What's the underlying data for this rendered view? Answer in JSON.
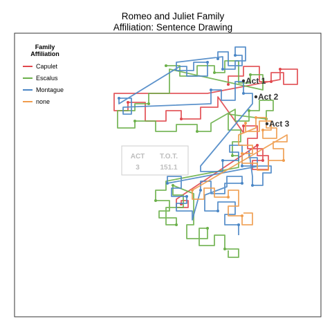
{
  "chart_data": {
    "type": "line",
    "title_lines": [
      "Romeo and Juliet Family",
      "Affiliation: Sentence Drawing"
    ],
    "xlabel": "",
    "ylabel": "",
    "grid": false,
    "legend_placement": "top-left",
    "legend": {
      "title_lines": [
        "Family",
        "Affiliation"
      ],
      "entries": [
        {
          "name": "Capulet",
          "color": "#E0474C"
        },
        {
          "name": "Escalus",
          "color": "#6BB04A"
        },
        {
          "name": "Montague",
          "color": "#4A86C5"
        },
        {
          "name": "none",
          "color": "#F09C4C"
        }
      ]
    },
    "acts": [
      {
        "label": "Act 1",
        "x": 352,
        "y": 117
      },
      {
        "label": "Act 2",
        "x": 370,
        "y": 140
      },
      {
        "label": "Act 3",
        "x": 386,
        "y": 179
      }
    ],
    "info_box": {
      "headers": [
        "ACT",
        "T.O.T."
      ],
      "values": [
        "3",
        "151.1"
      ]
    },
    "series": [
      {
        "name": "Capulet",
        "color": "#E0474C",
        "points": [
          [
            330,
            122
          ],
          [
            330,
            110
          ],
          [
            352,
            110
          ],
          [
            352,
            96
          ],
          [
            375,
            96
          ],
          [
            375,
            118
          ],
          [
            392,
            118
          ],
          [
            392,
            105
          ],
          [
            410,
            105
          ],
          [
            410,
            122
          ],
          [
            430,
            122
          ],
          [
            430,
            100
          ],
          [
            405,
            100
          ],
          [
            405,
            115
          ],
          [
            300,
            135
          ],
          [
            165,
            135
          ],
          [
            165,
            160
          ],
          [
            185,
            160
          ],
          [
            185,
            148
          ],
          [
            210,
            148
          ],
          [
            210,
            175
          ],
          [
            240,
            175
          ],
          [
            240,
            160
          ],
          [
            262,
            160
          ],
          [
            262,
            172
          ],
          [
            290,
            172
          ],
          [
            290,
            155
          ],
          [
            315,
            155
          ],
          [
            315,
            140
          ],
          [
            352,
            192
          ],
          [
            352,
            182
          ],
          [
            372,
            182
          ],
          [
            372,
            200
          ],
          [
            358,
            200
          ],
          [
            358,
            215
          ],
          [
            380,
            215
          ],
          [
            380,
            232
          ],
          [
            365,
            232
          ],
          [
            365,
            245
          ],
          [
            388,
            245
          ],
          [
            388,
            225
          ],
          [
            372,
            225
          ],
          [
            372,
            210
          ],
          [
            255,
            288
          ],
          [
            255,
            300
          ],
          [
            272,
            300
          ],
          [
            272,
            290
          ],
          [
            262,
            290
          ],
          [
            262,
            295
          ]
        ]
      },
      {
        "name": "Escalus",
        "color": "#6BB04A",
        "points": [
          [
            240,
            95
          ],
          [
            260,
            95
          ],
          [
            260,
            110
          ],
          [
            285,
            110
          ],
          [
            285,
            95
          ],
          [
            310,
            95
          ],
          [
            310,
            105
          ],
          [
            325,
            105
          ],
          [
            325,
            88
          ],
          [
            345,
            88
          ],
          [
            345,
            120
          ],
          [
            362,
            120
          ],
          [
            362,
            108
          ],
          [
            380,
            108
          ],
          [
            380,
            130
          ],
          [
            245,
            100
          ],
          [
            245,
            135
          ],
          [
            215,
            135
          ],
          [
            215,
            150
          ],
          [
            195,
            150
          ],
          [
            195,
            160
          ],
          [
            170,
            160
          ],
          [
            170,
            185
          ],
          [
            195,
            185
          ],
          [
            195,
            175
          ],
          [
            225,
            175
          ],
          [
            225,
            190
          ],
          [
            255,
            190
          ],
          [
            255,
            180
          ],
          [
            285,
            180
          ],
          [
            285,
            190
          ],
          [
            305,
            190
          ],
          [
            305,
            178
          ],
          [
            340,
            158
          ],
          [
            340,
            175
          ],
          [
            360,
            175
          ],
          [
            360,
            160
          ],
          [
            375,
            160
          ],
          [
            375,
            145
          ],
          [
            395,
            145
          ],
          [
            395,
            160
          ],
          [
            385,
            160
          ],
          [
            385,
            172
          ],
          [
            330,
            165
          ],
          [
            330,
            188
          ],
          [
            348,
            188
          ],
          [
            348,
            205
          ],
          [
            336,
            205
          ],
          [
            336,
            225
          ],
          [
            345,
            225
          ],
          [
            345,
            242
          ],
          [
            240,
            262
          ],
          [
            240,
            275
          ],
          [
            225,
            275
          ],
          [
            225,
            290
          ],
          [
            245,
            290
          ],
          [
            245,
            305
          ],
          [
            230,
            305
          ],
          [
            230,
            315
          ],
          [
            255,
            315
          ],
          [
            255,
            325
          ],
          [
            240,
            325
          ],
          [
            240,
            300
          ],
          [
            265,
            300
          ],
          [
            265,
            282
          ],
          [
            250,
            282
          ],
          [
            250,
            268
          ],
          [
            280,
            280
          ],
          [
            280,
            325
          ],
          [
            270,
            325
          ],
          [
            270,
            345
          ],
          [
            300,
            345
          ],
          [
            300,
            330
          ],
          [
            288,
            330
          ],
          [
            288,
            355
          ],
          [
            310,
            355
          ],
          [
            310,
            340
          ],
          [
            325,
            340
          ],
          [
            325,
            360
          ],
          [
            345,
            360
          ],
          [
            345,
            372
          ],
          [
            330,
            372
          ],
          [
            330,
            362
          ]
        ]
      },
      {
        "name": "Montague",
        "color": "#4A86C5",
        "points": [
          [
            315,
            85
          ],
          [
            315,
            75
          ],
          [
            330,
            75
          ],
          [
            330,
            95
          ],
          [
            350,
            95
          ],
          [
            350,
            80
          ],
          [
            340,
            80
          ],
          [
            340,
            68
          ],
          [
            355,
            68
          ],
          [
            355,
            88
          ],
          [
            340,
            88
          ],
          [
            340,
            100
          ],
          [
            322,
            100
          ],
          [
            322,
            82
          ],
          [
            255,
            90
          ],
          [
            255,
            102
          ],
          [
            280,
            102
          ],
          [
            280,
            90
          ],
          [
            300,
            90
          ],
          [
            300,
            110
          ],
          [
            270,
            110
          ],
          [
            270,
            96
          ],
          [
            260,
            96
          ],
          [
            172,
            150
          ],
          [
            172,
            142
          ],
          [
            190,
            142
          ],
          [
            190,
            165
          ],
          [
            178,
            165
          ],
          [
            178,
            155
          ],
          [
            305,
            150
          ],
          [
            305,
            130
          ],
          [
            320,
            130
          ],
          [
            320,
            145
          ],
          [
            340,
            145
          ],
          [
            340,
            118
          ],
          [
            352,
            118
          ],
          [
            352,
            135
          ],
          [
            365,
            135
          ],
          [
            365,
            150
          ],
          [
            290,
            240
          ],
          [
            290,
            248
          ],
          [
            322,
            248
          ],
          [
            322,
            232
          ],
          [
            345,
            232
          ],
          [
            345,
            220
          ],
          [
            332,
            220
          ],
          [
            332,
            210
          ],
          [
            350,
            210
          ],
          [
            350,
            240
          ],
          [
            372,
            240
          ],
          [
            372,
            228
          ],
          [
            360,
            228
          ],
          [
            360,
            218
          ],
          [
            365,
            255
          ],
          [
            365,
            268
          ],
          [
            380,
            268
          ],
          [
            380,
            250
          ],
          [
            392,
            250
          ],
          [
            392,
            240
          ],
          [
            375,
            240
          ],
          [
            242,
            265
          ],
          [
            242,
            255
          ],
          [
            262,
            255
          ],
          [
            262,
            272
          ],
          [
            248,
            272
          ],
          [
            248,
            284
          ],
          [
            270,
            284
          ],
          [
            270,
            294
          ],
          [
            255,
            294
          ],
          [
            255,
            305
          ],
          [
            278,
            305
          ],
          [
            278,
            318
          ],
          [
            290,
            275
          ],
          [
            290,
            262
          ],
          [
            305,
            262
          ],
          [
            305,
            280
          ],
          [
            325,
            280
          ],
          [
            325,
            265
          ],
          [
            350,
            265
          ],
          [
            350,
            255
          ],
          [
            328,
            255
          ],
          [
            328,
            270
          ],
          [
            296,
            282
          ],
          [
            296,
            305
          ],
          [
            315,
            305
          ],
          [
            315,
            292
          ],
          [
            340,
            292
          ],
          [
            340,
            310
          ],
          [
            325,
            310
          ],
          [
            325,
            325
          ],
          [
            345,
            325
          ],
          [
            345,
            340
          ]
        ]
      },
      {
        "name": "none",
        "color": "#F09C4C",
        "points": [
          [
            355,
            178
          ],
          [
            355,
            190
          ],
          [
            375,
            190
          ],
          [
            375,
            175
          ],
          [
            392,
            175
          ],
          [
            392,
            188
          ],
          [
            380,
            188
          ],
          [
            380,
            200
          ],
          [
            400,
            200
          ],
          [
            400,
            185
          ],
          [
            385,
            185
          ],
          [
            385,
            170
          ],
          [
            370,
            170
          ],
          [
            370,
            185
          ],
          [
            345,
            195
          ],
          [
            345,
            210
          ],
          [
            365,
            210
          ],
          [
            365,
            222
          ],
          [
            350,
            222
          ],
          [
            350,
            236
          ],
          [
            372,
            236
          ],
          [
            372,
            246
          ],
          [
            388,
            246
          ],
          [
            388,
            232
          ],
          [
            410,
            232
          ],
          [
            410,
            215
          ],
          [
            395,
            215
          ],
          [
            395,
            205
          ],
          [
            415,
            205
          ],
          [
            415,
            195
          ],
          [
            278,
            275
          ],
          [
            278,
            288
          ],
          [
            295,
            288
          ],
          [
            295,
            272
          ],
          [
            310,
            272
          ],
          [
            310,
            285
          ],
          [
            330,
            285
          ],
          [
            330,
            275
          ],
          [
            345,
            275
          ],
          [
            345,
            298
          ],
          [
            330,
            298
          ],
          [
            330,
            312
          ],
          [
            350,
            312
          ],
          [
            350,
            325
          ],
          [
            365,
            325
          ],
          [
            365,
            308
          ],
          [
            352,
            308
          ]
        ]
      }
    ]
  }
}
